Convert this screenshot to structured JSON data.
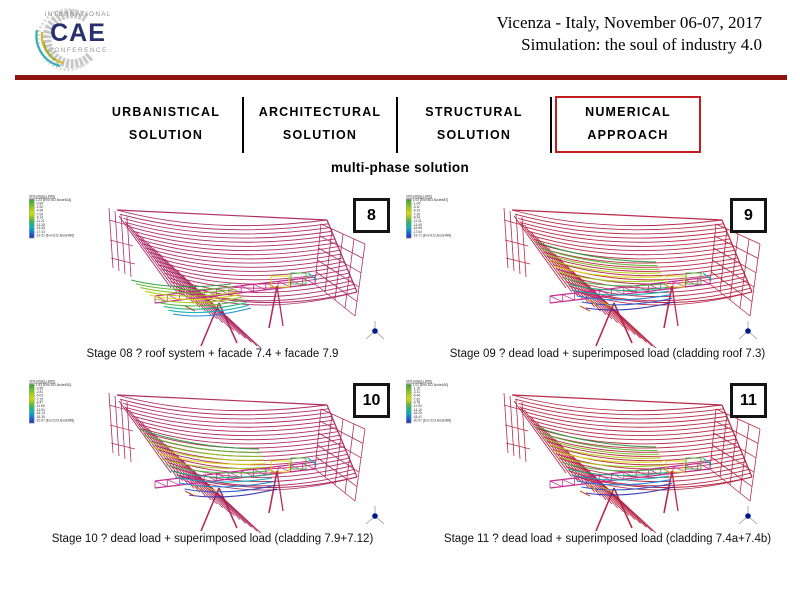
{
  "header": {
    "logo": {
      "top": "INTERNATIONAL",
      "main": "CAE",
      "bottom": "CONFERENCE"
    },
    "event_line1": "Vicenza - Italy, November 06-07, 2017",
    "event_line2": "Simulation: the soul of industry 4.0",
    "rule_color": "#8e1414"
  },
  "nav": {
    "active_border_color": "#c22020",
    "tabs": [
      {
        "label_line1": "URBANISTICAL",
        "label_line2": "SOLUTION",
        "active": false
      },
      {
        "label_line1": "ARCHITECTURAL",
        "label_line2": "SOLUTION",
        "active": false
      },
      {
        "label_line1": "STRUCTURAL",
        "label_line2": "SOLUTION",
        "active": false
      },
      {
        "label_line1": "NUMERICAL",
        "label_line2": "APPROACH",
        "active": true
      }
    ]
  },
  "section_title": "multi-phase solution",
  "panels": [
    {
      "badge": "8",
      "caption": "Stage 08 ? roof system + facade 7.4 + facade 7.9",
      "legend": {
        "title": "Vert-Disp(Z) [mm]",
        "lines": [
          "1.23 [Env:102,Node634]",
          "-0.84",
          "-2.92",
          "-4.99",
          "-7.06",
          "-9.14",
          "-11.21",
          "-13.28",
          "-15.36",
          "-17.43",
          "-19.51 [Env:612,Node996]"
        ]
      }
    },
    {
      "badge": "9",
      "caption": "Stage 09 ? dead load + superimposed load (cladding roof 7.3)",
      "legend": {
        "title": "Vert-Disp(Z) [mm]",
        "lines": [
          "1.04 [Env:503,Node687]",
          "-1.04",
          "-3.11",
          "-5.19",
          "-7.26",
          "-9.34",
          "-11.41",
          "-13.49",
          "-15.56",
          "-17.64",
          "-19.71 [Env:612,Node996]"
        ]
      }
    },
    {
      "badge": "10",
      "caption": "Stage 10 ? dead load + superimposed load (cladding 7.9+7.12)",
      "legend": {
        "title": "Vert-Disp(Z) [mm]",
        "lines": [
          "1.63 [Env:102,Node630]",
          "-0.59",
          "-2.81",
          "-5.03",
          "-7.25",
          "-9.47",
          "-11.69",
          "-13.91",
          "-16.13",
          "-18.35",
          "-20.57 [Env:223,Node998]"
        ]
      }
    },
    {
      "badge": "11",
      "caption": "Stage 11 ? dead load + superimposed load (cladding 7.4a+7.4b)",
      "legend": {
        "title": "Vert-Disp(Z) [mm]",
        "lines": [
          "1.01 [Env:102,Node630]",
          "-1.15",
          "-3.31",
          "-5.46",
          "-7.62",
          "-9.78",
          "-11.94",
          "-14.10",
          "-16.25",
          "-18.41",
          "-20.57 [Env:223,Node998]"
        ]
      }
    }
  ],
  "colors": {
    "wire_colors": [
      "#aa2461",
      "#b51f41",
      "#ac2355",
      "#b2203f"
    ],
    "truss_color": "#c2258c",
    "contour_palette": [
      "#2f9e3c",
      "#5cb52c",
      "#85c41e",
      "#b0cf12",
      "#dcd90a",
      "#9fca14",
      "#4db846",
      "#17b57d",
      "#0fb2bb",
      "#1186d8",
      "#1f55cc",
      "#2b2fae"
    ],
    "triad_dot": "#001a8c"
  }
}
